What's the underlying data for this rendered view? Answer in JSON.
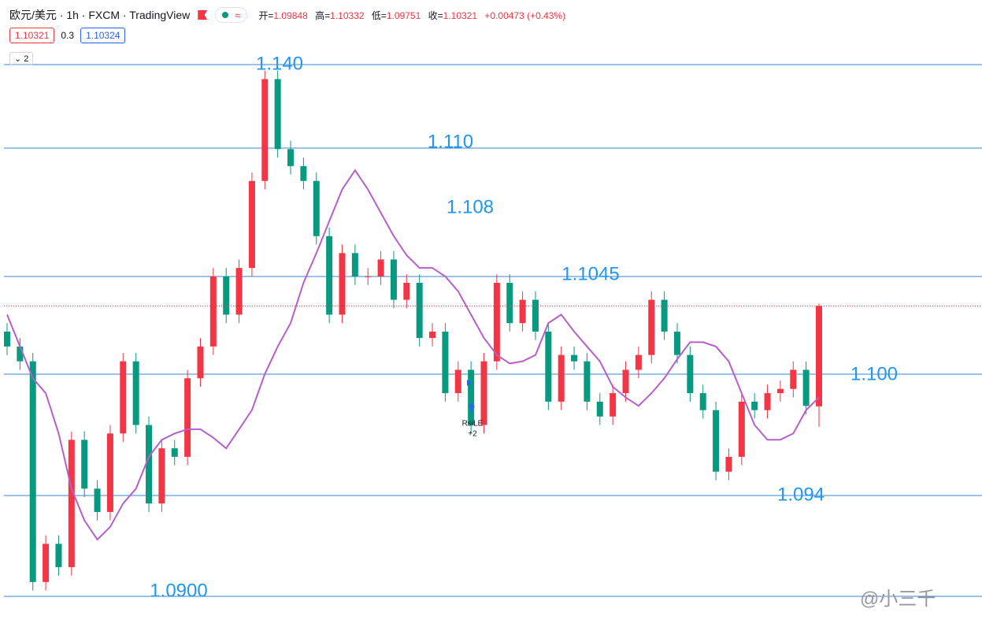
{
  "header": {
    "title": "欧元/美元 · 1h · FXCM · TradingView",
    "ohlc": [
      {
        "label": "开=",
        "value": "1.09848"
      },
      {
        "label": "高=",
        "value": "1.10332"
      },
      {
        "label": "低=",
        "value": "1.09751"
      },
      {
        "label": "收=",
        "value": "1.10321"
      }
    ],
    "change": "+0.00473 (+0.43%)",
    "price_boxes": [
      "1.10321",
      "0.3",
      "1.10324"
    ],
    "indicator_count": "2"
  },
  "watermark": "@小三千",
  "chart_data": {
    "type": "candlestick",
    "ylim": [
      1.0883,
      1.1154
    ],
    "up_color": "#f23645",
    "down_color": "#089981",
    "ma_color": "#b65fc9",
    "level_color": "#3b84d6",
    "label_color": "#2196f3",
    "open": [
      1.102,
      1.1013,
      1.1006,
      1.0902,
      1.092,
      1.0909,
      1.0969,
      1.0946,
      1.0935,
      1.0972,
      1.1006,
      1.0976,
      1.0939,
      1.0965,
      1.0961,
      1.0998,
      1.1013,
      1.1046,
      1.1028,
      1.105,
      1.1091,
      1.1139,
      1.1106,
      1.1098,
      1.1091,
      1.1065,
      1.1028,
      1.1057,
      1.1046,
      1.1046,
      1.1054,
      1.1035,
      1.1043,
      1.1017,
      1.102,
      1.0991,
      1.1002,
      1.0976,
      1.1006,
      1.1043,
      1.1024,
      1.1035,
      1.102,
      1.0987,
      1.1009,
      1.1006,
      1.0987,
      1.098,
      1.0991,
      1.1002,
      1.1009,
      1.1035,
      1.102,
      1.1009,
      1.0991,
      1.0983,
      1.0954,
      1.0961,
      1.0987,
      1.0983,
      1.0991,
      1.0993,
      1.1002,
      1.09848
    ],
    "high": [
      1.1024,
      1.1017,
      1.101,
      1.0924,
      1.0924,
      1.0973,
      1.0973,
      1.095,
      1.0976,
      1.101,
      1.101,
      1.098,
      1.0969,
      1.0969,
      1.1002,
      1.1017,
      1.105,
      1.105,
      1.1054,
      1.1095,
      1.1143,
      1.1143,
      1.111,
      1.1102,
      1.1095,
      1.1069,
      1.1061,
      1.1061,
      1.105,
      1.1058,
      1.1058,
      1.1047,
      1.1047,
      1.1024,
      1.1024,
      1.1006,
      1.1006,
      1.101,
      1.1047,
      1.1047,
      1.1039,
      1.1039,
      1.1024,
      1.1013,
      1.1013,
      1.101,
      1.0991,
      1.0995,
      1.1006,
      1.1013,
      1.1039,
      1.1039,
      1.1024,
      1.1013,
      1.0995,
      1.0987,
      1.0965,
      1.0991,
      1.0991,
      1.0995,
      1.0997,
      1.1006,
      1.1006,
      1.10332
    ],
    "low": [
      1.1009,
      1.1002,
      1.0898,
      1.0898,
      1.0905,
      1.0905,
      1.0942,
      1.0931,
      1.0931,
      1.0968,
      1.0972,
      1.0935,
      1.0935,
      1.0957,
      1.0957,
      1.0994,
      1.1009,
      1.1024,
      1.1024,
      1.1046,
      1.1087,
      1.1102,
      1.1094,
      1.1087,
      1.1061,
      1.1024,
      1.1024,
      1.1042,
      1.1042,
      1.1042,
      1.1031,
      1.1031,
      1.1013,
      1.1013,
      1.0987,
      1.0987,
      1.0972,
      1.0972,
      1.1002,
      1.102,
      1.102,
      1.1016,
      1.0983,
      1.0983,
      1.1002,
      1.0983,
      1.0976,
      1.0976,
      1.0987,
      1.0998,
      1.1005,
      1.1016,
      1.1005,
      1.0987,
      1.0979,
      1.095,
      1.095,
      1.0957,
      1.0979,
      1.0979,
      1.0987,
      1.0989,
      1.0981,
      1.09751
    ],
    "close": [
      1.1013,
      1.1006,
      1.0902,
      1.092,
      1.0909,
      1.0969,
      1.0946,
      1.0935,
      1.0972,
      1.1006,
      1.0976,
      1.0939,
      1.0965,
      1.0961,
      1.0998,
      1.1013,
      1.1046,
      1.1028,
      1.105,
      1.1091,
      1.1139,
      1.1106,
      1.1098,
      1.1091,
      1.1065,
      1.1028,
      1.1057,
      1.1046,
      1.1046,
      1.1054,
      1.1035,
      1.1043,
      1.1017,
      1.102,
      1.0991,
      1.1002,
      1.0976,
      1.1006,
      1.1043,
      1.1024,
      1.1035,
      1.102,
      1.0987,
      1.1009,
      1.1006,
      1.0987,
      1.098,
      1.0991,
      1.1002,
      1.1009,
      1.1035,
      1.102,
      1.1009,
      1.0991,
      1.0983,
      1.0954,
      1.0961,
      1.0987,
      1.0983,
      1.0991,
      1.0993,
      1.1002,
      1.0985,
      1.10321
    ],
    "ma": [
      1.1028,
      1.1013,
      1.0998,
      1.0991,
      1.0972,
      1.0946,
      1.0931,
      1.0922,
      1.0928,
      1.0939,
      1.0946,
      1.0961,
      1.0969,
      1.0972,
      1.0974,
      1.0974,
      1.097,
      1.0965,
      1.0974,
      1.0983,
      1.1,
      1.1013,
      1.1024,
      1.1043,
      1.1057,
      1.1072,
      1.1087,
      1.1096,
      1.1087,
      1.1076,
      1.1065,
      1.1056,
      1.105,
      1.105,
      1.1046,
      1.1039,
      1.1028,
      1.1017,
      1.1009,
      1.1005,
      1.1006,
      1.1009,
      1.1024,
      1.1028,
      1.102,
      1.1013,
      1.1006,
      1.0994,
      1.0989,
      1.0985,
      1.0991,
      1.0998,
      1.1007,
      1.1015,
      1.1015,
      1.1013,
      1.1006,
      1.0991,
      1.0976,
      1.0969,
      1.0969,
      1.0972,
      1.0983,
      1.0989
    ],
    "annotations": [
      "1.140",
      "1.110",
      "1.108",
      "1.1045",
      "1.100",
      "1.094",
      "1.0900"
    ],
    "signal": {
      "label": "RsiLE",
      "qty": "+2"
    }
  }
}
